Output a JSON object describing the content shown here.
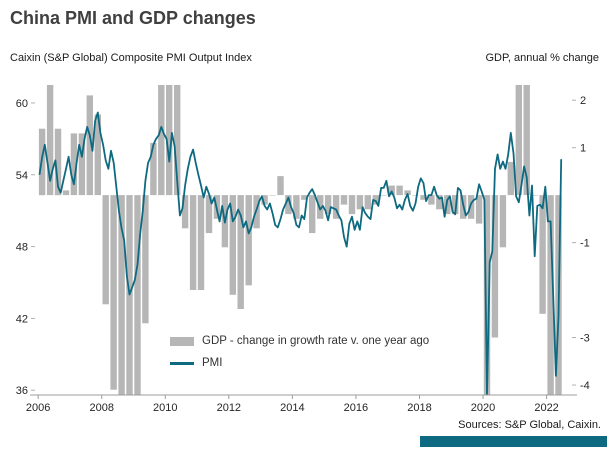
{
  "title": "China PMI and GDP changes",
  "axis_titles": {
    "left": "Caixin (S&P Global) Composite PMI Output Index",
    "right": "GDP, annual % change"
  },
  "legend": {
    "gdp": "GDP - change in growth rate v. one year ago",
    "pmi": "PMI"
  },
  "source": "Sources: S&P Global, Caixin.",
  "colors": {
    "pmi_line": "#0e6a80",
    "gdp_bar": "#b6b6b6",
    "accent_bar": "#0e6a80",
    "title_text": "#404040",
    "axis_text": "#262626"
  },
  "chart_data": {
    "type": "line+bar",
    "title": "China PMI and GDP changes",
    "grid": false,
    "legend_position": "inside-lower-left",
    "x_axis": {
      "ticks": [
        2006,
        2008,
        2010,
        2012,
        2014,
        2016,
        2018,
        2020,
        2022
      ],
      "range": [
        2005.9,
        2022.8
      ]
    },
    "left_axis": {
      "label": "Caixin (S&P Global) Composite PMI Output Index",
      "ticks": [
        60,
        54,
        48,
        42,
        36
      ],
      "range": [
        35.6,
        61.5
      ]
    },
    "right_axis": {
      "label": "GDP, annual % change",
      "ticks": [
        2,
        1,
        -1,
        -3,
        -4
      ],
      "range": [
        -4.21,
        2.32
      ]
    },
    "series": [
      {
        "name": "GDP - change in growth rate v. one year ago",
        "type": "bar",
        "axis": "right",
        "x_start": 2006.125,
        "x_step": 0.25,
        "values": [
          1.4,
          2.6,
          1.4,
          0.1,
          1.3,
          1.3,
          2.1,
          1.7,
          -2.3,
          -4.1,
          -4.8,
          -7.1,
          -5.1,
          -2.7,
          1.1,
          4.8,
          5.8,
          2.6,
          -0.7,
          -2.0,
          -2.0,
          -0.8,
          -0.5,
          -1.1,
          -2.1,
          -2.4,
          -1.9,
          -0.7,
          -0.2,
          0.0,
          0.4,
          -0.4,
          -0.5,
          -0.1,
          -0.8,
          -0.5,
          -0.4,
          -0.5,
          -0.2,
          -0.4,
          -0.3,
          -0.3,
          -0.2,
          0.0,
          0.2,
          0.2,
          0.1,
          0.0,
          -0.1,
          -0.2,
          -0.3,
          -0.4,
          -0.4,
          -0.5,
          -0.5,
          -0.6,
          -13.2,
          -3.0,
          -1.1,
          0.7,
          25.1,
          4.7,
          0.0,
          -2.5,
          -13.5,
          -7.5
        ]
      },
      {
        "name": "PMI",
        "type": "line",
        "axis": "left",
        "x_start": 2006.042,
        "x_step": 0.083333,
        "values": [
          54.0,
          55.5,
          56.5,
          55.0,
          53.5,
          54.5,
          55.2,
          53.0,
          52.5,
          53.5,
          54.5,
          55.5,
          54.0,
          53.2,
          55.0,
          56.5,
          55.5,
          57.0,
          58.0,
          57.3,
          56.0,
          58.5,
          59.2,
          57.5,
          56.5,
          55.2,
          54.5,
          56.0,
          55.0,
          53.0,
          51.0,
          49.5,
          48.5,
          45.5,
          44.0,
          44.6,
          45.2,
          46.5,
          49.0,
          51.0,
          53.5,
          55.0,
          55.5,
          56.5,
          57.0,
          57.3,
          58.0,
          57.4,
          57.0,
          55.1,
          57.5,
          56.4,
          53.5,
          50.6,
          51.2,
          53.1,
          54.5,
          55.5,
          56.1,
          55.0,
          54.0,
          53.1,
          52.1,
          53.0,
          52.4,
          51.6,
          52.1,
          51.1,
          50.1,
          51.4,
          50.0,
          51.1,
          51.6,
          50.1,
          50.5,
          51.1,
          50.6,
          49.6,
          50.1,
          49.1,
          49.6,
          50.5,
          51.1,
          51.8,
          52.2,
          51.4,
          51.1,
          51.6,
          50.8,
          49.8,
          49.6,
          50.3,
          51.1,
          51.6,
          52.1,
          51.3,
          50.8,
          49.8,
          49.6,
          50.6,
          50.3,
          52.1,
          52.5,
          52.8,
          52.3,
          51.7,
          51.1,
          51.4,
          51.0,
          50.2,
          51.3,
          51.2,
          51.1,
          50.6,
          50.2,
          48.8,
          48.0,
          49.9,
          50.5,
          49.4,
          50.1,
          49.4,
          51.3,
          50.8,
          50.5,
          50.3,
          51.9,
          51.8,
          51.4,
          52.9,
          52.9,
          53.5,
          52.2,
          52.6,
          52.1,
          51.2,
          51.5,
          51.1,
          51.9,
          52.4,
          51.4,
          51.0,
          51.6,
          53.0,
          53.7,
          53.3,
          51.8,
          52.3,
          52.3,
          53.0,
          52.3,
          52.0,
          52.1,
          50.5,
          51.9,
          52.2,
          50.9,
          50.7,
          52.9,
          52.7,
          51.5,
          50.6,
          50.9,
          51.6,
          51.9,
          52.0,
          53.2,
          52.6,
          51.9,
          27.5,
          46.7,
          47.6,
          54.5,
          55.7,
          54.5,
          55.1,
          54.5,
          55.7,
          57.5,
          55.8,
          52.2,
          51.7,
          53.1,
          54.7,
          53.8,
          50.6,
          53.1,
          47.2,
          51.4,
          51.5,
          51.2,
          53.0,
          50.1,
          50.1,
          43.9,
          37.2,
          42.2,
          55.3
        ]
      }
    ]
  }
}
